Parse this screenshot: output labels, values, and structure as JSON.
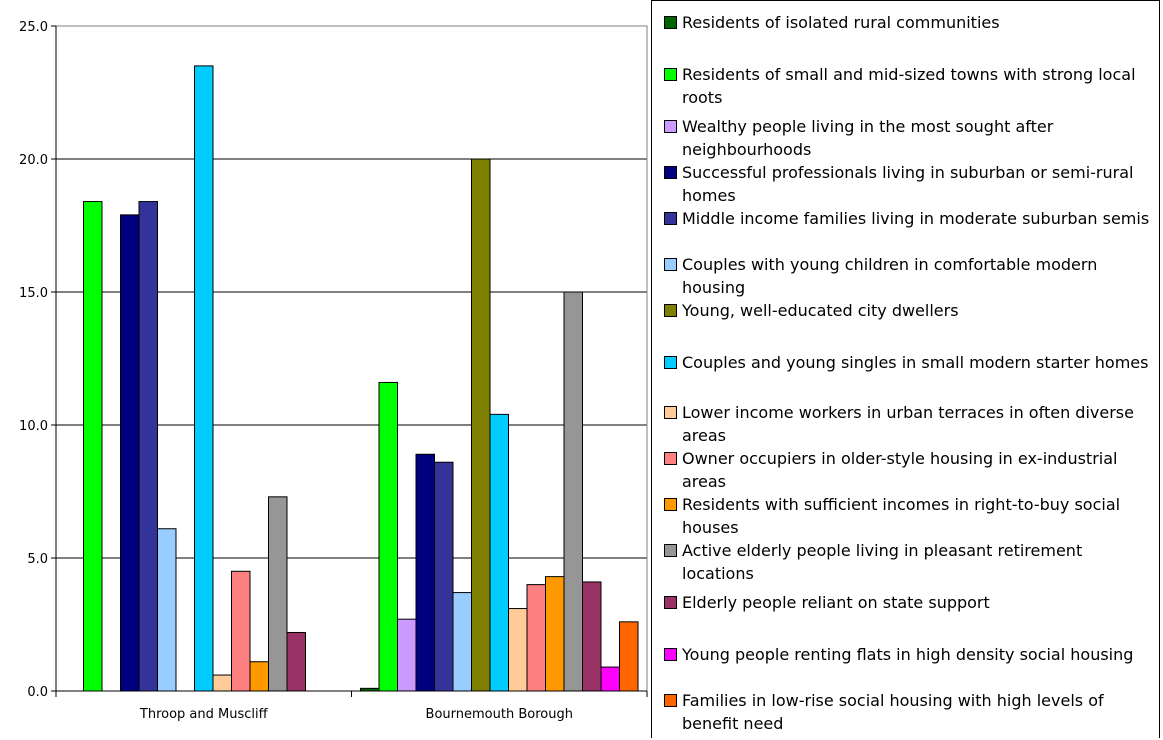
{
  "chart_data": {
    "type": "bar",
    "categories": [
      "Throop and Muscliff",
      "Bournemouth Borough"
    ],
    "ylim": [
      0,
      25
    ],
    "yticks": [
      "0.0",
      "5.0",
      "10.0",
      "15.0",
      "20.0",
      "25.0"
    ],
    "grid": true,
    "legend_position": "right",
    "series": [
      {
        "name": "Residents of isolated rural communities",
        "color": "#006400",
        "values": [
          0.0,
          0.1
        ]
      },
      {
        "name": "Residents of small and mid-sized towns with strong local roots",
        "color": "#00ff00",
        "values": [
          18.4,
          11.6
        ]
      },
      {
        "name": "Wealthy people living in the most sought after neighbourhoods",
        "color": "#cc99ff",
        "values": [
          0.0,
          2.7
        ]
      },
      {
        "name": "Successful professionals living in suburban or semi-rural homes",
        "color": "#000080",
        "values": [
          17.9,
          8.9
        ]
      },
      {
        "name": "Middle income families living in moderate suburban semis",
        "color": "#333399",
        "values": [
          18.4,
          8.6
        ]
      },
      {
        "name": "Couples with young children in comfortable modern housing",
        "color": "#99ccff",
        "values": [
          6.1,
          3.7
        ]
      },
      {
        "name": "Young, well-educated city dwellers",
        "color": "#808000",
        "values": [
          0.0,
          20.0
        ]
      },
      {
        "name": "Couples and young singles in small modern starter homes",
        "color": "#00ccff",
        "values": [
          23.5,
          10.4
        ]
      },
      {
        "name": "Lower income workers in urban terraces in often diverse areas",
        "color": "#ffcc99",
        "values": [
          0.6,
          3.1
        ]
      },
      {
        "name": "Owner occupiers in older-style housing in ex-industrial areas",
        "color": "#ff8080",
        "values": [
          4.5,
          4.0
        ]
      },
      {
        "name": "Residents with sufficient incomes in right-to-buy social houses",
        "color": "#ff9900",
        "values": [
          1.1,
          4.3
        ]
      },
      {
        "name": "Active elderly people living in pleasant retirement locations",
        "color": "#969696",
        "values": [
          7.3,
          15.0
        ]
      },
      {
        "name": "Elderly people reliant on state support",
        "color": "#993366",
        "values": [
          2.2,
          4.1
        ]
      },
      {
        "name": "Young people renting flats in high density social housing",
        "color": "#ff00ff",
        "values": [
          0.0,
          0.9
        ]
      },
      {
        "name": "Families in low-rise social housing with high levels of benefit need",
        "color": "#ff6600",
        "values": [
          0.0,
          2.6
        ]
      }
    ]
  }
}
